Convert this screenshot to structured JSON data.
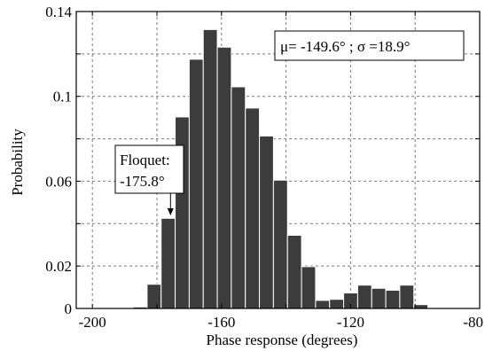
{
  "chart_data": {
    "type": "bar",
    "title": "",
    "xlabel": "Phase response (degrees)",
    "ylabel": "Probability",
    "xlim": [
      -205,
      -80
    ],
    "ylim": [
      0,
      0.14
    ],
    "xticks": [
      -200,
      -160,
      -120,
      -80
    ],
    "xtick_labels": [
      "-200",
      "-160",
      "-120",
      "-80"
    ],
    "yticks": [
      0,
      0.02,
      0.06,
      0.1,
      0.14
    ],
    "ytick_labels": [
      "0",
      "0.02",
      "0.06",
      "0.1",
      "0.14"
    ],
    "grid": true,
    "bin_width": 4.35,
    "bin_start": -187.4,
    "values": [
      0.0007,
      0.0114,
      0.0425,
      0.0903,
      0.1175,
      0.1315,
      0.1232,
      0.1045,
      0.0945,
      0.0813,
      0.0605,
      0.0345,
      0.0197,
      0.0038,
      0.0043,
      0.0073,
      0.011,
      0.0095,
      0.0086,
      0.011,
      0.0018
    ],
    "annotations": [
      {
        "id": "floquet",
        "lines": [
          "Floquet:",
          "-175.8°"
        ],
        "x": -175.8
      },
      {
        "id": "stats",
        "text": "μ= -149.6° ; σ =18.9°"
      }
    ]
  }
}
